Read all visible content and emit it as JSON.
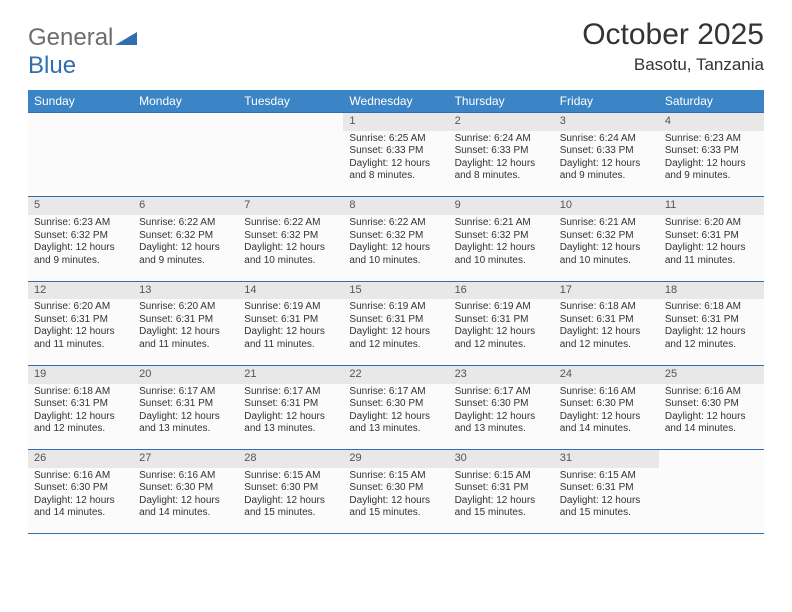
{
  "colors": {
    "header_bg": "#3b85c6",
    "header_text": "#ffffff",
    "daynum_bg": "#e8e8e8",
    "row_border": "#2f6fb0",
    "cell_bg": "#fbfbfb",
    "text": "#333333",
    "logo_gray": "#6d6d6d",
    "logo_blue": "#2f6fb0"
  },
  "logo": {
    "text1": "General",
    "text2": "Blue"
  },
  "title": "October 2025",
  "location": "Basotu, Tanzania",
  "day_headers": [
    "Sunday",
    "Monday",
    "Tuesday",
    "Wednesday",
    "Thursday",
    "Friday",
    "Saturday"
  ],
  "weeks": [
    [
      null,
      null,
      null,
      {
        "d": "1",
        "sr": "Sunrise: 6:25 AM",
        "ss": "Sunset: 6:33 PM",
        "dl1": "Daylight: 12 hours",
        "dl2": "and 8 minutes."
      },
      {
        "d": "2",
        "sr": "Sunrise: 6:24 AM",
        "ss": "Sunset: 6:33 PM",
        "dl1": "Daylight: 12 hours",
        "dl2": "and 8 minutes."
      },
      {
        "d": "3",
        "sr": "Sunrise: 6:24 AM",
        "ss": "Sunset: 6:33 PM",
        "dl1": "Daylight: 12 hours",
        "dl2": "and 9 minutes."
      },
      {
        "d": "4",
        "sr": "Sunrise: 6:23 AM",
        "ss": "Sunset: 6:33 PM",
        "dl1": "Daylight: 12 hours",
        "dl2": "and 9 minutes."
      }
    ],
    [
      {
        "d": "5",
        "sr": "Sunrise: 6:23 AM",
        "ss": "Sunset: 6:32 PM",
        "dl1": "Daylight: 12 hours",
        "dl2": "and 9 minutes."
      },
      {
        "d": "6",
        "sr": "Sunrise: 6:22 AM",
        "ss": "Sunset: 6:32 PM",
        "dl1": "Daylight: 12 hours",
        "dl2": "and 9 minutes."
      },
      {
        "d": "7",
        "sr": "Sunrise: 6:22 AM",
        "ss": "Sunset: 6:32 PM",
        "dl1": "Daylight: 12 hours",
        "dl2": "and 10 minutes."
      },
      {
        "d": "8",
        "sr": "Sunrise: 6:22 AM",
        "ss": "Sunset: 6:32 PM",
        "dl1": "Daylight: 12 hours",
        "dl2": "and 10 minutes."
      },
      {
        "d": "9",
        "sr": "Sunrise: 6:21 AM",
        "ss": "Sunset: 6:32 PM",
        "dl1": "Daylight: 12 hours",
        "dl2": "and 10 minutes."
      },
      {
        "d": "10",
        "sr": "Sunrise: 6:21 AM",
        "ss": "Sunset: 6:32 PM",
        "dl1": "Daylight: 12 hours",
        "dl2": "and 10 minutes."
      },
      {
        "d": "11",
        "sr": "Sunrise: 6:20 AM",
        "ss": "Sunset: 6:31 PM",
        "dl1": "Daylight: 12 hours",
        "dl2": "and 11 minutes."
      }
    ],
    [
      {
        "d": "12",
        "sr": "Sunrise: 6:20 AM",
        "ss": "Sunset: 6:31 PM",
        "dl1": "Daylight: 12 hours",
        "dl2": "and 11 minutes."
      },
      {
        "d": "13",
        "sr": "Sunrise: 6:20 AM",
        "ss": "Sunset: 6:31 PM",
        "dl1": "Daylight: 12 hours",
        "dl2": "and 11 minutes."
      },
      {
        "d": "14",
        "sr": "Sunrise: 6:19 AM",
        "ss": "Sunset: 6:31 PM",
        "dl1": "Daylight: 12 hours",
        "dl2": "and 11 minutes."
      },
      {
        "d": "15",
        "sr": "Sunrise: 6:19 AM",
        "ss": "Sunset: 6:31 PM",
        "dl1": "Daylight: 12 hours",
        "dl2": "and 12 minutes."
      },
      {
        "d": "16",
        "sr": "Sunrise: 6:19 AM",
        "ss": "Sunset: 6:31 PM",
        "dl1": "Daylight: 12 hours",
        "dl2": "and 12 minutes."
      },
      {
        "d": "17",
        "sr": "Sunrise: 6:18 AM",
        "ss": "Sunset: 6:31 PM",
        "dl1": "Daylight: 12 hours",
        "dl2": "and 12 minutes."
      },
      {
        "d": "18",
        "sr": "Sunrise: 6:18 AM",
        "ss": "Sunset: 6:31 PM",
        "dl1": "Daylight: 12 hours",
        "dl2": "and 12 minutes."
      }
    ],
    [
      {
        "d": "19",
        "sr": "Sunrise: 6:18 AM",
        "ss": "Sunset: 6:31 PM",
        "dl1": "Daylight: 12 hours",
        "dl2": "and 12 minutes."
      },
      {
        "d": "20",
        "sr": "Sunrise: 6:17 AM",
        "ss": "Sunset: 6:31 PM",
        "dl1": "Daylight: 12 hours",
        "dl2": "and 13 minutes."
      },
      {
        "d": "21",
        "sr": "Sunrise: 6:17 AM",
        "ss": "Sunset: 6:31 PM",
        "dl1": "Daylight: 12 hours",
        "dl2": "and 13 minutes."
      },
      {
        "d": "22",
        "sr": "Sunrise: 6:17 AM",
        "ss": "Sunset: 6:30 PM",
        "dl1": "Daylight: 12 hours",
        "dl2": "and 13 minutes."
      },
      {
        "d": "23",
        "sr": "Sunrise: 6:17 AM",
        "ss": "Sunset: 6:30 PM",
        "dl1": "Daylight: 12 hours",
        "dl2": "and 13 minutes."
      },
      {
        "d": "24",
        "sr": "Sunrise: 6:16 AM",
        "ss": "Sunset: 6:30 PM",
        "dl1": "Daylight: 12 hours",
        "dl2": "and 14 minutes."
      },
      {
        "d": "25",
        "sr": "Sunrise: 6:16 AM",
        "ss": "Sunset: 6:30 PM",
        "dl1": "Daylight: 12 hours",
        "dl2": "and 14 minutes."
      }
    ],
    [
      {
        "d": "26",
        "sr": "Sunrise: 6:16 AM",
        "ss": "Sunset: 6:30 PM",
        "dl1": "Daylight: 12 hours",
        "dl2": "and 14 minutes."
      },
      {
        "d": "27",
        "sr": "Sunrise: 6:16 AM",
        "ss": "Sunset: 6:30 PM",
        "dl1": "Daylight: 12 hours",
        "dl2": "and 14 minutes."
      },
      {
        "d": "28",
        "sr": "Sunrise: 6:15 AM",
        "ss": "Sunset: 6:30 PM",
        "dl1": "Daylight: 12 hours",
        "dl2": "and 15 minutes."
      },
      {
        "d": "29",
        "sr": "Sunrise: 6:15 AM",
        "ss": "Sunset: 6:30 PM",
        "dl1": "Daylight: 12 hours",
        "dl2": "and 15 minutes."
      },
      {
        "d": "30",
        "sr": "Sunrise: 6:15 AM",
        "ss": "Sunset: 6:31 PM",
        "dl1": "Daylight: 12 hours",
        "dl2": "and 15 minutes."
      },
      {
        "d": "31",
        "sr": "Sunrise: 6:15 AM",
        "ss": "Sunset: 6:31 PM",
        "dl1": "Daylight: 12 hours",
        "dl2": "and 15 minutes."
      },
      null
    ]
  ]
}
